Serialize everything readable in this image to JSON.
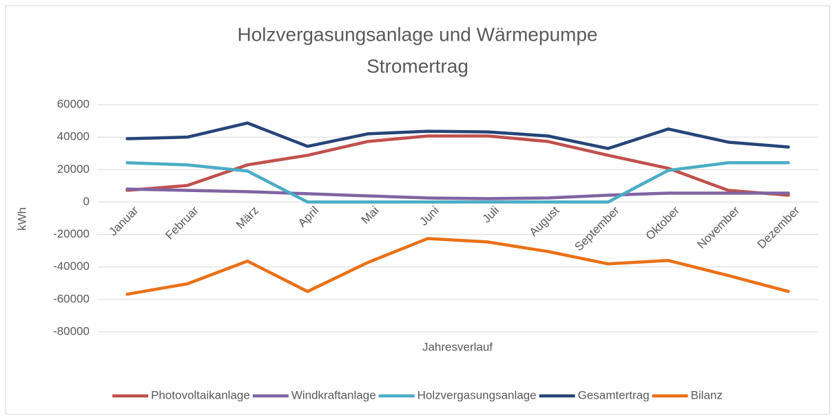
{
  "chart_data": {
    "type": "line",
    "title": [
      "Holzvergasungsanlage und Wärmepumpe",
      "Stromertrag"
    ],
    "y_label": "kWh",
    "x_label": "Jahresverlauf",
    "categories": [
      "Januar",
      "Februar",
      "März",
      "April",
      "Mai",
      "Juni",
      "Juli",
      "August",
      "September",
      "Oktober",
      "November",
      "Dezember"
    ],
    "ylim": [
      -80000,
      60000
    ],
    "yticks": [
      -80000,
      -60000,
      -40000,
      -20000,
      0,
      20000,
      40000,
      60000
    ],
    "grid": true,
    "legend": "bottom",
    "series": [
      {
        "name": "Photovoltaikanlage",
        "color": "#c0504d",
        "values": [
          7200,
          10200,
          22900,
          28800,
          37300,
          40700,
          40700,
          37300,
          28800,
          20800,
          7200,
          4200
        ]
      },
      {
        "name": "Windkraftanlage",
        "color": "#8064a2",
        "values": [
          8000,
          7200,
          6400,
          5100,
          3800,
          2500,
          2100,
          2500,
          4200,
          5500,
          5500,
          5500
        ]
      },
      {
        "name": "Holzvergasungsanlage",
        "color": "#4bacc6",
        "values": [
          24200,
          22900,
          19100,
          0,
          0,
          0,
          0,
          0,
          0,
          19500,
          24200,
          24200
        ]
      },
      {
        "name": "Gesamtertrag",
        "color": "#264478",
        "values": [
          39000,
          40000,
          48700,
          34300,
          42000,
          43600,
          43200,
          40700,
          33000,
          45000,
          36900,
          33900
        ]
      },
      {
        "name": "Bilanz",
        "color": "#ea7017",
        "values": [
          -56800,
          -50400,
          -36400,
          -55100,
          -37300,
          -22500,
          -24600,
          -30500,
          -38100,
          -36000,
          -45300,
          -55100
        ]
      }
    ]
  }
}
